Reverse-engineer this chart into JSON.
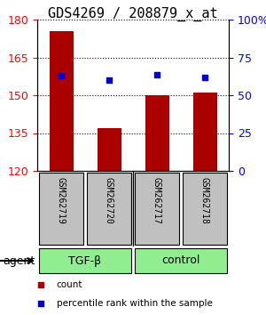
{
  "title": "GDS4269 / 208879_x_at",
  "samples": [
    "GSM262719",
    "GSM262720",
    "GSM262717",
    "GSM262718"
  ],
  "bar_values": [
    175.5,
    137.0,
    150.0,
    151.0
  ],
  "percentile_values": [
    63.0,
    60.0,
    63.5,
    62.0
  ],
  "group_labels": [
    "TGF-β",
    "control"
  ],
  "group_color": "#90EE90",
  "ylim_left": [
    120,
    180
  ],
  "yticks_left": [
    120,
    135,
    150,
    165,
    180
  ],
  "ylim_right": [
    0,
    100
  ],
  "yticks_right": [
    0,
    25,
    50,
    75,
    100
  ],
  "ytick_labels_right": [
    "0",
    "25",
    "50",
    "75",
    "100%"
  ],
  "bar_color": "#AA0000",
  "dot_color": "#0000CC",
  "bar_width": 0.5,
  "agent_label": "agent",
  "sample_box_color": "#C0C0C0",
  "title_fontsize": 11,
  "tick_fontsize": 9,
  "label_fontsize": 9,
  "legend_count_label": "count",
  "legend_pct_label": "percentile rank within the sample"
}
